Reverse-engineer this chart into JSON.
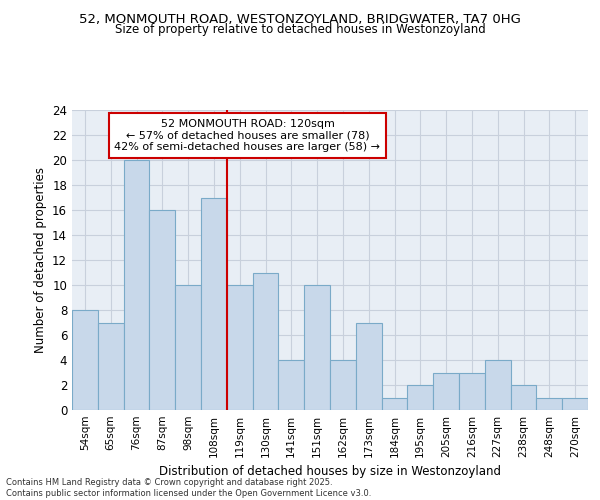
{
  "title_line1": "52, MONMOUTH ROAD, WESTONZOYLAND, BRIDGWATER, TA7 0HG",
  "title_line2": "Size of property relative to detached houses in Westonzoyland",
  "xlabel": "Distribution of detached houses by size in Westonzoyland",
  "ylabel": "Number of detached properties",
  "categories": [
    "54sqm",
    "65sqm",
    "76sqm",
    "87sqm",
    "98sqm",
    "108sqm",
    "119sqm",
    "130sqm",
    "141sqm",
    "151sqm",
    "162sqm",
    "173sqm",
    "184sqm",
    "195sqm",
    "205sqm",
    "216sqm",
    "227sqm",
    "238sqm",
    "248sqm",
    "270sqm"
  ],
  "values": [
    8,
    7,
    20,
    16,
    10,
    17,
    10,
    11,
    4,
    10,
    4,
    7,
    1,
    2,
    3,
    3,
    4,
    2,
    1,
    1
  ],
  "bar_color": "#c8d8ea",
  "bar_edge_color": "#7aaac8",
  "vline_x_index": 6,
  "vline_color": "#cc0000",
  "annotation_text": "52 MONMOUTH ROAD: 120sqm\n← 57% of detached houses are smaller (78)\n42% of semi-detached houses are larger (58) →",
  "annotation_box_color": "#ffffff",
  "annotation_box_edge_color": "#cc0000",
  "ylim": [
    0,
    24
  ],
  "yticks": [
    0,
    2,
    4,
    6,
    8,
    10,
    12,
    14,
    16,
    18,
    20,
    22,
    24
  ],
  "background_color": "#e8eef5",
  "grid_color": "#c8d0dc",
  "footer_line1": "Contains HM Land Registry data © Crown copyright and database right 2025.",
  "footer_line2": "Contains public sector information licensed under the Open Government Licence v3.0."
}
